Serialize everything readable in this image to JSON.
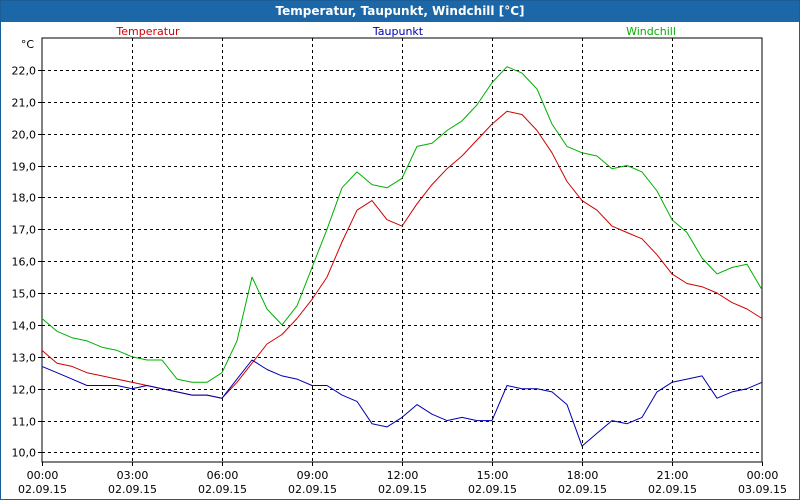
{
  "window": {
    "title": "Temperatur, Taupunkt, Windchill [°C]"
  },
  "chart_data": {
    "type": "line",
    "title": "Temperatur, Taupunkt, Windchill [°C]",
    "ylabel": "°C",
    "ylim": [
      9.7,
      23.0
    ],
    "yticks": [
      "10,0",
      "11,0",
      "12,0",
      "13,0",
      "14,0",
      "15,0",
      "16,0",
      "17,0",
      "18,0",
      "19,0",
      "20,0",
      "21,0",
      "22,0"
    ],
    "xticks": [
      {
        "time": "00:00",
        "date": "02.09.15"
      },
      {
        "time": "03:00",
        "date": "02.09.15"
      },
      {
        "time": "06:00",
        "date": "02.09.15"
      },
      {
        "time": "09:00",
        "date": "02.09.15"
      },
      {
        "time": "12:00",
        "date": "02.09.15"
      },
      {
        "time": "15:00",
        "date": "02.09.15"
      },
      {
        "time": "18:00",
        "date": "02.09.15"
      },
      {
        "time": "21:00",
        "date": "02.09.15"
      },
      {
        "time": "00:00",
        "date": "03.09.15"
      }
    ],
    "x_hours": [
      0,
      0.5,
      1,
      1.5,
      2,
      2.5,
      3,
      3.5,
      4,
      4.5,
      5,
      5.5,
      6,
      6.5,
      7,
      7.5,
      8,
      8.5,
      9,
      9.5,
      10,
      10.5,
      11,
      11.5,
      12,
      12.5,
      13,
      13.5,
      14,
      14.5,
      15,
      15.5,
      16,
      16.5,
      17,
      17.5,
      18,
      18.5,
      19,
      19.5,
      20,
      20.5,
      21,
      21.5,
      22,
      22.5,
      23,
      23.5,
      24
    ],
    "grid": true,
    "series": [
      {
        "name": "Temperatur",
        "color": "#d00000",
        "values": [
          13.2,
          12.8,
          12.7,
          12.5,
          12.4,
          12.3,
          12.2,
          12.1,
          12.0,
          11.9,
          11.8,
          11.8,
          11.7,
          12.2,
          12.8,
          13.4,
          13.7,
          14.2,
          14.8,
          15.5,
          16.6,
          17.6,
          17.9,
          17.3,
          17.1,
          17.8,
          18.4,
          18.9,
          19.3,
          19.8,
          20.3,
          20.7,
          20.6,
          20.1,
          19.4,
          18.5,
          17.9,
          17.6,
          17.1,
          16.9,
          16.7,
          16.2,
          15.6,
          15.3,
          15.2,
          15.0,
          14.7,
          14.5,
          14.2
        ]
      },
      {
        "name": "Taupunkt",
        "color": "#0000b0",
        "values": [
          12.7,
          12.5,
          12.3,
          12.1,
          12.1,
          12.1,
          12.0,
          12.1,
          12.0,
          11.9,
          11.8,
          11.8,
          11.7,
          12.3,
          12.9,
          12.6,
          12.4,
          12.3,
          12.1,
          12.1,
          11.8,
          11.6,
          10.9,
          10.8,
          11.1,
          11.5,
          11.2,
          11.0,
          11.1,
          11.0,
          11.0,
          12.1,
          12.0,
          12.0,
          11.9,
          11.5,
          10.2,
          10.6,
          11.0,
          10.9,
          11.1,
          11.9,
          12.2,
          12.3,
          12.4,
          11.7,
          11.9,
          12.0,
          12.2
        ]
      },
      {
        "name": "Windchill",
        "color": "#00b000",
        "values": [
          14.2,
          13.8,
          13.6,
          13.5,
          13.3,
          13.2,
          13.0,
          12.9,
          12.9,
          12.3,
          12.2,
          12.2,
          12.5,
          13.5,
          15.5,
          14.5,
          14.0,
          14.6,
          15.8,
          17.0,
          18.3,
          18.8,
          18.4,
          18.3,
          18.6,
          19.6,
          19.7,
          20.1,
          20.4,
          20.9,
          21.6,
          22.1,
          21.9,
          21.4,
          20.3,
          19.6,
          19.4,
          19.3,
          18.9,
          19.0,
          18.8,
          18.2,
          17.3,
          16.9,
          16.1,
          15.6,
          15.8,
          15.9,
          15.1
        ]
      }
    ]
  }
}
